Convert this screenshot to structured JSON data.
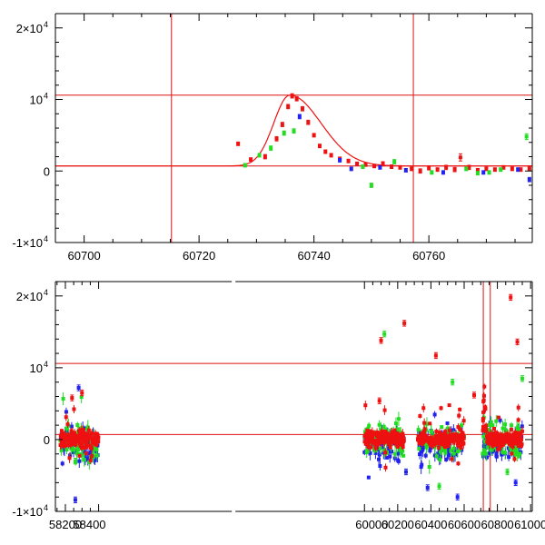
{
  "chart_data": [
    {
      "type": "scatter",
      "panel": "top",
      "title": "",
      "xlabel": "",
      "ylabel": "",
      "xlim": [
        60695,
        60778
      ],
      "ylim": [
        -10000,
        22000
      ],
      "grid": false,
      "x_ticks": [
        {
          "value": 60700,
          "label": "60700"
        },
        {
          "value": 60720,
          "label": "60720"
        },
        {
          "value": 60740,
          "label": "60740"
        },
        {
          "value": 60760,
          "label": "60760"
        }
      ],
      "y_ticks": [
        {
          "value": -10000,
          "base": "-1×10",
          "exp": "4"
        },
        {
          "value": 0,
          "base": "0",
          "exp": ""
        },
        {
          "value": 10000,
          "base": "10",
          "exp": "4"
        },
        {
          "value": 20000,
          "base": "2×10",
          "exp": "4"
        }
      ],
      "ref_lines": {
        "horizontal": [
          10600,
          700
        ],
        "vertical": [
          60715.2,
          60757.3
        ]
      },
      "model_curve": {
        "color": "#ee1111",
        "baseline": 700,
        "peak_x": 60735.8,
        "peak_y": 10600,
        "rise_tau": 2.8,
        "decay_tau": 4.2
      },
      "series": [
        {
          "name": "",
          "color": "#ee1111",
          "points": [
            [
              60726.8,
              3800,
              250
            ],
            [
              60729,
              1600,
              250
            ],
            [
              60731.5,
              2000,
              300
            ],
            [
              60733.5,
              4500,
              300
            ],
            [
              60734.5,
              6500,
              300
            ],
            [
              60735.5,
              9000,
              300
            ],
            [
              60736.2,
              10500,
              300
            ],
            [
              60737,
              10100,
              300
            ],
            [
              60738,
              8700,
              300
            ],
            [
              60739,
              6800,
              300
            ],
            [
              60740,
              5000,
              250
            ],
            [
              60741,
              3500,
              250
            ],
            [
              60742,
              2700,
              250
            ],
            [
              60743,
              2200,
              250
            ],
            [
              60744.5,
              1700,
              250
            ],
            [
              60746,
              1400,
              250
            ],
            [
              60747.5,
              1000,
              250
            ],
            [
              60749,
              900,
              250
            ],
            [
              60750.5,
              700,
              250
            ],
            [
              60752,
              1000,
              300
            ],
            [
              60753.5,
              600,
              250
            ],
            [
              60755,
              500,
              250
            ],
            [
              60757,
              300,
              250
            ],
            [
              60758.5,
              0,
              300
            ],
            [
              60760,
              400,
              250
            ],
            [
              60761.5,
              200,
              250
            ],
            [
              60763,
              500,
              300
            ],
            [
              60764.5,
              200,
              300
            ],
            [
              60765.5,
              1900,
              500
            ],
            [
              60767,
              500,
              300
            ],
            [
              60768.5,
              100,
              250
            ],
            [
              60770,
              300,
              250
            ],
            [
              60771.5,
              200,
              250
            ],
            [
              60773,
              500,
              250
            ],
            [
              60774.5,
              300,
              250
            ],
            [
              60776,
              200,
              250
            ],
            [
              60777.5,
              400,
              300
            ]
          ]
        },
        {
          "name": "",
          "color": "#22dd22",
          "points": [
            [
              60728,
              800,
              250
            ],
            [
              60730.5,
              2200,
              250
            ],
            [
              60732.5,
              3200,
              300
            ],
            [
              60734.8,
              5300,
              300
            ],
            [
              60736.5,
              5600,
              300
            ],
            [
              60748.5,
              600,
              250
            ],
            [
              60750,
              -2000,
              300
            ],
            [
              60754,
              1300,
              300
            ],
            [
              60760.5,
              -200,
              250
            ],
            [
              60766.5,
              300,
              250
            ],
            [
              60768.5,
              -300,
              250
            ],
            [
              60770.5,
              -200,
              250
            ],
            [
              60772.5,
              200,
              250
            ],
            [
              60777,
              4800,
              400
            ]
          ]
        },
        {
          "name": "",
          "color": "#2222ee",
          "points": [
            [
              60737.5,
              7600,
              300
            ],
            [
              60744.5,
              1500,
              250
            ],
            [
              60746.5,
              300,
              250
            ],
            [
              60751.5,
              500,
              250
            ],
            [
              60756,
              100,
              250
            ],
            [
              60762.5,
              -200,
              250
            ],
            [
              60769.5,
              -200,
              250
            ],
            [
              60775.5,
              200,
              250
            ],
            [
              60777.5,
              -1200,
              300
            ]
          ]
        }
      ]
    },
    {
      "type": "scatter",
      "panel": "bottom",
      "title": "",
      "xlabel": "",
      "ylabel": "",
      "xlim": [
        58140,
        61010
      ],
      "ylim": [
        -10000,
        22000
      ],
      "grid": false,
      "axis_break": {
        "from": 58440,
        "to": 59985
      },
      "x_ticks": [
        {
          "value": 58200,
          "label": "58200"
        },
        {
          "value": 58400,
          "label": "58400"
        },
        {
          "value": 60000,
          "label": "60000"
        },
        {
          "value": 60200,
          "label": "60200"
        },
        {
          "value": 60400,
          "label": "60400"
        },
        {
          "value": 60600,
          "label": "60600"
        },
        {
          "value": 60800,
          "label": "60800"
        },
        {
          "value": 61000,
          "label": "61000"
        }
      ],
      "y_ticks": [
        {
          "value": -10000,
          "base": "-1×10",
          "exp": "4"
        },
        {
          "value": 0,
          "base": "0",
          "exp": ""
        },
        {
          "value": 10000,
          "base": "10",
          "exp": "4"
        },
        {
          "value": 20000,
          "base": "2×10",
          "exp": "4"
        }
      ],
      "ref_lines": {
        "horizontal": [
          10600,
          700
        ],
        "vertical": [
          60715.2,
          60757.3
        ]
      },
      "season_ranges": [
        [
          58170,
          58400
        ],
        [
          60000,
          60240
        ],
        [
          60320,
          60600
        ],
        [
          60710,
          60950
        ]
      ],
      "notable_points": {
        "red": [
          [
            60100,
            13800
          ],
          [
            60240,
            16200
          ],
          [
            60880,
            19800
          ],
          [
            60920,
            13600
          ],
          [
            60430,
            11700
          ],
          [
            58300,
            6500
          ],
          [
            58240,
            5800
          ],
          [
            60660,
            6200
          ],
          [
            60090,
            5400
          ]
        ],
        "green": [
          [
            60120,
            14700
          ],
          [
            60530,
            8000
          ],
          [
            60950,
            8500
          ],
          [
            60860,
            -4500
          ],
          [
            58260,
            -3000
          ],
          [
            60450,
            -6500
          ]
        ],
        "blue": [
          [
            58280,
            7200
          ],
          [
            58260,
            -8400
          ],
          [
            60380,
            -6700
          ],
          [
            60910,
            -6000
          ],
          [
            60250,
            -4500
          ],
          [
            60560,
            -8000
          ]
        ]
      }
    }
  ]
}
